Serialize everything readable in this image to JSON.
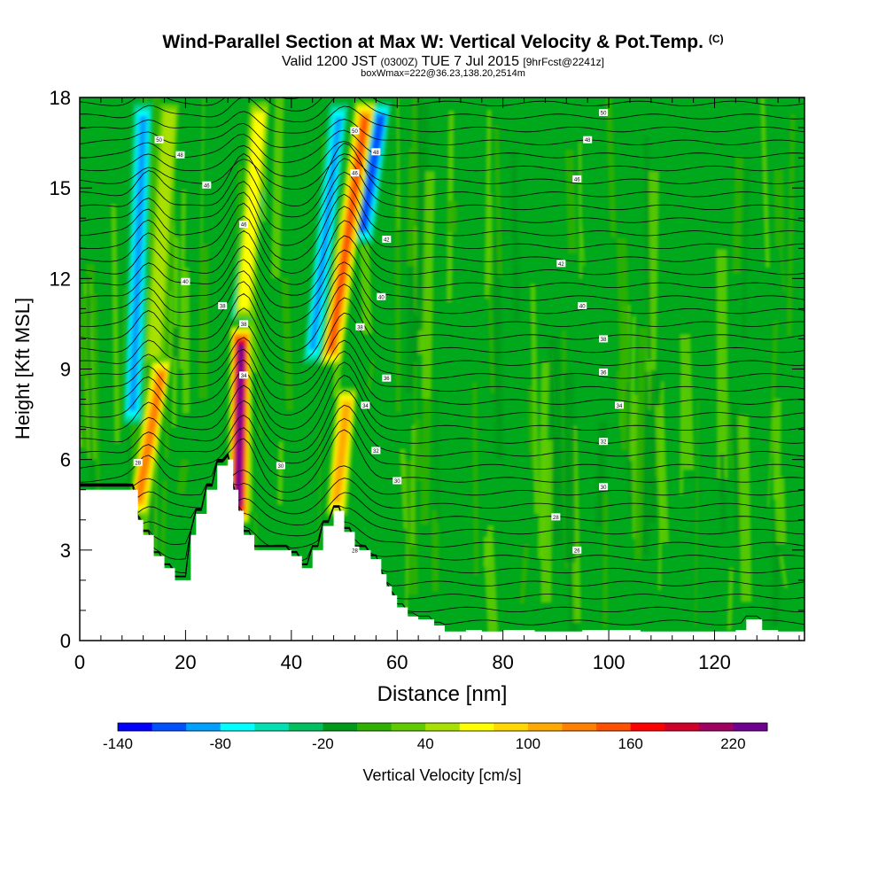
{
  "title": {
    "main": "Wind-Parallel Section at Max W: Vertical Velocity & Pot.Temp.",
    "copyright": "(C)",
    "valid_prefix": "Valid 1200 JST",
    "utc": "(0300Z)",
    "date": "TUE 7 Jul 2015",
    "forecast": "[9hrFcst@2241z]",
    "box": "boxWmax=222@36.23,138.20,2514m"
  },
  "chart_data": {
    "type": "heatmap",
    "xlabel": "Distance [nm]",
    "ylabel": "Height [Kft MSL]",
    "xlim": [
      0,
      137
    ],
    "ylim": [
      0,
      18
    ],
    "x_ticks": [
      "0",
      "20",
      "40",
      "60",
      "80",
      "100",
      "120"
    ],
    "y_ticks": [
      "0",
      "3",
      "6",
      "9",
      "12",
      "15",
      "18"
    ],
    "colorbar": {
      "label": "Vertical Velocity [cm/s]",
      "tick_labels": [
        "-140",
        "-80",
        "-20",
        "40",
        "100",
        "160",
        "220"
      ],
      "levels": [
        -140,
        -120,
        -100,
        -80,
        -60,
        -40,
        -20,
        0,
        20,
        40,
        60,
        80,
        100,
        120,
        140,
        160,
        180,
        200,
        220,
        240
      ],
      "colors": [
        "#0000ff",
        "#0050ff",
        "#00a0ff",
        "#00ffff",
        "#00e0b0",
        "#00c060",
        "#009a1a",
        "#30b000",
        "#60cc00",
        "#a8e000",
        "#ffff00",
        "#ffd800",
        "#ffaa00",
        "#ff8000",
        "#ff5000",
        "#ff0000",
        "#d0002a",
        "#a00060",
        "#700090"
      ],
      "background_color": "#00a81c"
    },
    "terrain": [
      [
        0,
        5
      ],
      [
        10,
        5
      ],
      [
        11,
        4
      ],
      [
        12,
        3.5
      ],
      [
        14,
        2.8
      ],
      [
        16,
        2.4
      ],
      [
        18,
        2
      ],
      [
        20,
        2
      ],
      [
        21,
        3.5
      ],
      [
        22,
        4.2
      ],
      [
        24,
        5
      ],
      [
        26,
        5.8
      ],
      [
        28,
        6
      ],
      [
        29,
        5
      ],
      [
        30,
        4.3
      ],
      [
        31,
        3.5
      ],
      [
        33,
        3
      ],
      [
        37,
        3
      ],
      [
        40,
        2.8
      ],
      [
        42,
        2.4
      ],
      [
        44,
        3
      ],
      [
        46,
        3.8
      ],
      [
        48,
        4.3
      ],
      [
        50,
        3.6
      ],
      [
        52,
        3
      ],
      [
        55,
        2.7
      ],
      [
        57,
        2.2
      ],
      [
        58,
        1.8
      ],
      [
        59,
        1.5
      ],
      [
        60,
        1.1
      ],
      [
        62,
        0.8
      ],
      [
        64,
        0.7
      ],
      [
        67,
        0.5
      ],
      [
        69,
        0.3
      ],
      [
        71,
        0.3
      ],
      [
        73,
        0.35
      ],
      [
        76,
        0.3
      ],
      [
        80,
        0.35
      ],
      [
        83,
        0.35
      ],
      [
        86,
        0.3
      ],
      [
        90,
        0.3
      ],
      [
        95,
        0.35
      ],
      [
        100,
        0.35
      ],
      [
        106,
        0.3
      ],
      [
        112,
        0.3
      ],
      [
        118,
        0.3
      ],
      [
        124,
        0.35
      ],
      [
        126,
        0.7
      ],
      [
        128,
        0.7
      ],
      [
        129,
        0.35
      ],
      [
        132,
        0.3
      ],
      [
        137,
        0.3
      ]
    ],
    "updraft_bands": [
      {
        "x_bottom": 11,
        "x_top": 15.5,
        "z_bottom": 4,
        "z_top": 9.5,
        "peak": 130
      },
      {
        "x_bottom": 14,
        "x_top": 17,
        "z_bottom": 9,
        "z_top": 18,
        "peak": 55
      },
      {
        "x_bottom": 30,
        "x_top": 30.5,
        "z_bottom": 3.8,
        "z_top": 10.5,
        "peak": 222
      },
      {
        "x_bottom": 31,
        "x_top": 34,
        "z_bottom": 10.5,
        "z_top": 18,
        "peak": 75
      },
      {
        "x_bottom": 48.5,
        "x_top": 50.5,
        "z_bottom": 4,
        "z_top": 8.5,
        "peak": 110
      },
      {
        "x_bottom": 47.5,
        "x_top": 54,
        "z_bottom": 9,
        "z_top": 18,
        "peak": 140
      }
    ],
    "downdraft_bands": [
      {
        "x_bottom": 10,
        "x_top": 12,
        "z_bottom": 7,
        "z_top": 18,
        "peak": -85
      },
      {
        "x_bottom": 30.5,
        "x_top": 33,
        "z_bottom": 10.5,
        "z_top": 15,
        "peak": -140
      },
      {
        "x_bottom": 44,
        "x_top": 49,
        "z_bottom": 9,
        "z_top": 18,
        "peak": -80
      },
      {
        "x_bottom": 53.5,
        "x_top": 57,
        "z_bottom": 13,
        "z_top": 18,
        "peak": -110
      }
    ],
    "theta_contours": {
      "line_color": "#000000",
      "labels": [
        {
          "x": 15,
          "y": 16.6,
          "text": "50"
        },
        {
          "x": 19,
          "y": 16.1,
          "text": "48"
        },
        {
          "x": 24,
          "y": 15.1,
          "text": "46"
        },
        {
          "x": 20,
          "y": 11.9,
          "text": "40"
        },
        {
          "x": 27,
          "y": 11.1,
          "text": "38"
        },
        {
          "x": 31,
          "y": 13.8,
          "text": "46"
        },
        {
          "x": 31,
          "y": 10.5,
          "text": "38"
        },
        {
          "x": 31,
          "y": 8.8,
          "text": "34"
        },
        {
          "x": 11,
          "y": 5.9,
          "text": "28"
        },
        {
          "x": 38,
          "y": 5.8,
          "text": "30"
        },
        {
          "x": 52,
          "y": 16.9,
          "text": "50"
        },
        {
          "x": 56,
          "y": 16.2,
          "text": "48"
        },
        {
          "x": 52,
          "y": 15.5,
          "text": "46"
        },
        {
          "x": 58,
          "y": 13.3,
          "text": "42"
        },
        {
          "x": 57,
          "y": 11.4,
          "text": "40"
        },
        {
          "x": 53,
          "y": 10.4,
          "text": "38"
        },
        {
          "x": 58,
          "y": 8.7,
          "text": "36"
        },
        {
          "x": 54,
          "y": 7.8,
          "text": "34"
        },
        {
          "x": 56,
          "y": 6.3,
          "text": "32"
        },
        {
          "x": 60,
          "y": 5.3,
          "text": "30"
        },
        {
          "x": 52,
          "y": 3.0,
          "text": "28"
        },
        {
          "x": 99,
          "y": 17.5,
          "text": "50"
        },
        {
          "x": 96,
          "y": 16.6,
          "text": "48"
        },
        {
          "x": 94,
          "y": 15.3,
          "text": "46"
        },
        {
          "x": 91,
          "y": 12.5,
          "text": "42"
        },
        {
          "x": 95,
          "y": 11.1,
          "text": "40"
        },
        {
          "x": 99,
          "y": 10.0,
          "text": "38"
        },
        {
          "x": 99,
          "y": 8.9,
          "text": "36"
        },
        {
          "x": 102,
          "y": 7.8,
          "text": "34"
        },
        {
          "x": 99,
          "y": 6.6,
          "text": "32"
        },
        {
          "x": 99,
          "y": 5.1,
          "text": "30"
        },
        {
          "x": 90,
          "y": 4.1,
          "text": "28"
        },
        {
          "x": 94,
          "y": 3.0,
          "text": "26"
        }
      ]
    }
  }
}
